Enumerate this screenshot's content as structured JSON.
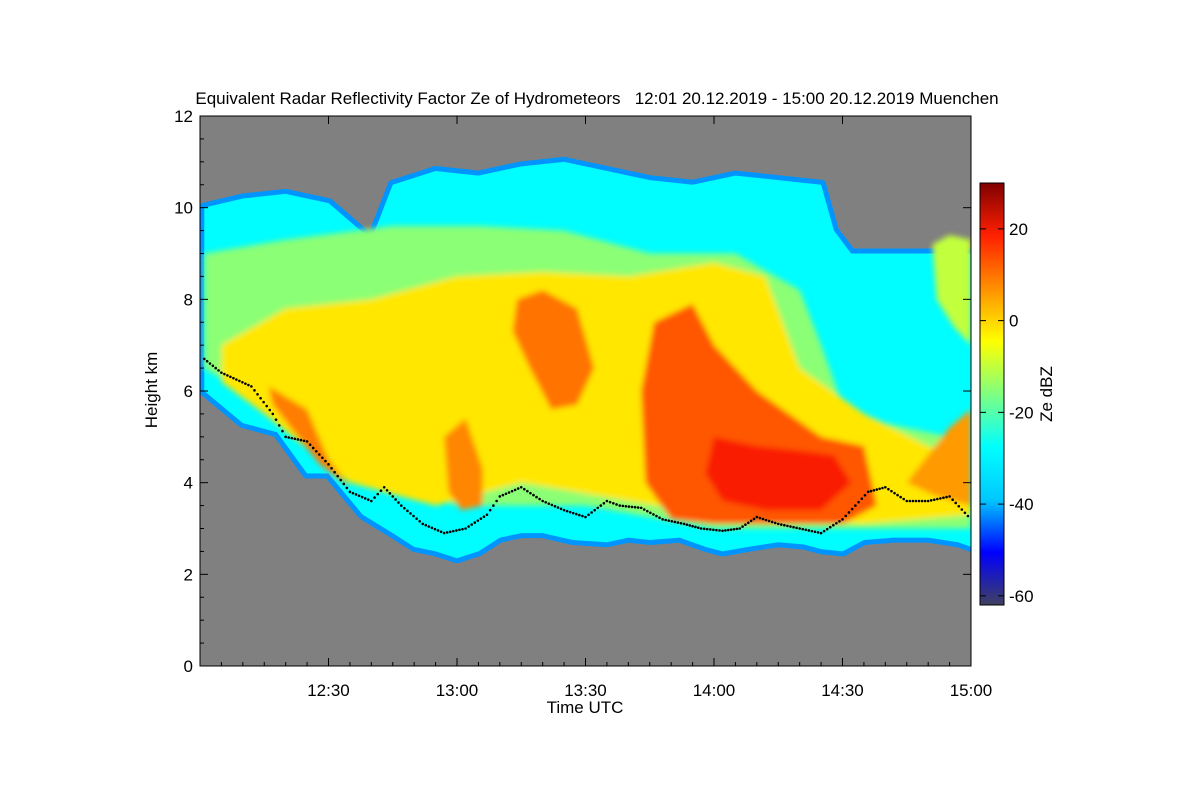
{
  "chart_data": {
    "type": "heatmap",
    "title": "Equivalent Radar Reflectivity Factor Ze of Hydrometeors   12:01 20.12.2019 - 15:00 20.12.2019 Muenchen",
    "xlabel": "Time UTC",
    "ylabel": "Height km",
    "xlim_minutes_after_1200": [
      1,
      180
    ],
    "ylim_km": [
      0,
      12
    ],
    "x_ticks": [
      {
        "label": "12:30",
        "minutes": 30
      },
      {
        "label": "13:00",
        "minutes": 60
      },
      {
        "label": "13:30",
        "minutes": 90
      },
      {
        "label": "14:00",
        "minutes": 120
      },
      {
        "label": "14:30",
        "minutes": 150
      },
      {
        "label": "15:00",
        "minutes": 180
      }
    ],
    "y_ticks": [
      {
        "label": "0",
        "value": 0
      },
      {
        "label": "2",
        "value": 2
      },
      {
        "label": "4",
        "value": 4
      },
      {
        "label": "6",
        "value": 6
      },
      {
        "label": "8",
        "value": 8
      },
      {
        "label": "10",
        "value": 10
      },
      {
        "label": "12",
        "value": 12
      }
    ],
    "colorbar": {
      "label": "Ze dBZ",
      "range": [
        -62,
        30
      ],
      "ticks": [
        {
          "label": "20",
          "value": 20
        },
        {
          "label": "0",
          "value": 0
        },
        {
          "label": "-20",
          "value": -20
        },
        {
          "label": "-40",
          "value": -40
        },
        {
          "label": "-60",
          "value": -60
        }
      ],
      "colors": [
        "#404060",
        "#0000ff",
        "#00c8ff",
        "#00ffff",
        "#80ff80",
        "#ffff00",
        "#ff9000",
        "#ff2000",
        "#800000"
      ]
    },
    "no_data_color": "#808080",
    "cloud_top_km": [
      [
        1,
        10.0
      ],
      [
        10,
        10.2
      ],
      [
        20,
        10.3
      ],
      [
        30,
        10.1
      ],
      [
        40,
        9.3
      ],
      [
        45,
        10.5
      ],
      [
        55,
        10.8
      ],
      [
        65,
        10.7
      ],
      [
        75,
        10.9
      ],
      [
        85,
        11.0
      ],
      [
        95,
        10.8
      ],
      [
        105,
        10.6
      ],
      [
        115,
        10.5
      ],
      [
        125,
        10.7
      ],
      [
        135,
        10.6
      ],
      [
        145,
        10.5
      ],
      [
        148,
        9.5
      ],
      [
        152,
        9.0
      ]
    ],
    "cloud_base_km": [
      [
        1,
        6.0
      ],
      [
        10,
        5.3
      ],
      [
        18,
        5.1
      ],
      [
        25,
        4.2
      ],
      [
        30,
        4.2
      ],
      [
        38,
        3.3
      ],
      [
        45,
        2.9
      ],
      [
        50,
        2.6
      ],
      [
        55,
        2.5
      ],
      [
        60,
        2.35
      ],
      [
        65,
        2.5
      ],
      [
        70,
        2.8
      ],
      [
        75,
        2.9
      ],
      [
        80,
        2.9
      ],
      [
        87,
        2.75
      ],
      [
        95,
        2.7
      ],
      [
        100,
        2.8
      ],
      [
        105,
        2.75
      ],
      [
        112,
        2.8
      ],
      [
        118,
        2.6
      ],
      [
        122,
        2.5
      ],
      [
        128,
        2.6
      ],
      [
        135,
        2.7
      ],
      [
        141,
        2.65
      ],
      [
        145,
        2.55
      ],
      [
        150,
        2.5
      ],
      [
        155,
        2.75
      ],
      [
        162,
        2.8
      ],
      [
        170,
        2.8
      ],
      [
        177,
        2.7
      ],
      [
        180,
        2.6
      ]
    ],
    "dotted_line_km": [
      [
        1,
        6.7
      ],
      [
        5,
        6.4
      ],
      [
        12,
        6.1
      ],
      [
        17,
        5.5
      ],
      [
        20,
        5.0
      ],
      [
        25,
        4.9
      ],
      [
        30,
        4.4
      ],
      [
        35,
        3.8
      ],
      [
        40,
        3.6
      ],
      [
        43,
        3.9
      ],
      [
        47,
        3.5
      ],
      [
        52,
        3.1
      ],
      [
        57,
        2.9
      ],
      [
        62,
        3.0
      ],
      [
        67,
        3.3
      ],
      [
        70,
        3.7
      ],
      [
        75,
        3.9
      ],
      [
        80,
        3.6
      ],
      [
        85,
        3.4
      ],
      [
        90,
        3.25
      ],
      [
        95,
        3.6
      ],
      [
        98,
        3.5
      ],
      [
        103,
        3.45
      ],
      [
        108,
        3.2
      ],
      [
        113,
        3.1
      ],
      [
        117,
        3.0
      ],
      [
        122,
        2.95
      ],
      [
        126,
        3.0
      ],
      [
        130,
        3.25
      ],
      [
        135,
        3.1
      ],
      [
        140,
        3.0
      ],
      [
        145,
        2.9
      ],
      [
        150,
        3.2
      ],
      [
        156,
        3.8
      ],
      [
        160,
        3.9
      ],
      [
        165,
        3.6
      ],
      [
        170,
        3.6
      ],
      [
        175,
        3.7
      ],
      [
        180,
        3.2
      ]
    ],
    "reflectivity_regions": [
      {
        "name": "upper-ice-cloud",
        "dbz": -15,
        "points": [
          [
            1,
            9.0
          ],
          [
            20,
            9.3
          ],
          [
            45,
            9.6
          ],
          [
            65,
            9.6
          ],
          [
            85,
            9.5
          ],
          [
            105,
            9.0
          ],
          [
            125,
            9.0
          ],
          [
            140,
            8.2
          ],
          [
            145,
            7.0
          ],
          [
            150,
            5.7
          ],
          [
            160,
            5.3
          ],
          [
            175,
            5.0
          ],
          [
            180,
            4.5
          ],
          [
            180,
            3.0
          ],
          [
            150,
            3.0
          ],
          [
            120,
            3.0
          ],
          [
            90,
            3.5
          ],
          [
            60,
            3.5
          ],
          [
            30,
            4.5
          ],
          [
            10,
            6.0
          ],
          [
            1,
            6.5
          ]
        ]
      },
      {
        "name": "mid-layer",
        "dbz": -2,
        "points": [
          [
            5,
            7.0
          ],
          [
            20,
            7.8
          ],
          [
            40,
            8.0
          ],
          [
            60,
            8.5
          ],
          [
            80,
            8.6
          ],
          [
            100,
            8.5
          ],
          [
            120,
            8.8
          ],
          [
            132,
            8.5
          ],
          [
            140,
            6.5
          ],
          [
            155,
            5.5
          ],
          [
            170,
            4.8
          ],
          [
            180,
            4.5
          ],
          [
            180,
            3.3
          ],
          [
            155,
            3.1
          ],
          [
            125,
            3.2
          ],
          [
            100,
            3.6
          ],
          [
            75,
            4.0
          ],
          [
            55,
            3.5
          ],
          [
            35,
            4.0
          ],
          [
            15,
            5.5
          ],
          [
            5,
            6.2
          ]
        ]
      },
      {
        "name": "core-west",
        "dbz": 9,
        "points": [
          [
            16,
            6.1
          ],
          [
            25,
            5.6
          ],
          [
            30,
            4.5
          ],
          [
            35,
            3.9
          ],
          [
            28,
            4.4
          ],
          [
            22,
            5.1
          ],
          [
            17,
            5.7
          ]
        ]
      },
      {
        "name": "core-1315",
        "dbz": 10,
        "points": [
          [
            74,
            8.0
          ],
          [
            80,
            8.2
          ],
          [
            88,
            7.8
          ],
          [
            92,
            6.5
          ],
          [
            88,
            5.7
          ],
          [
            82,
            5.6
          ],
          [
            77,
            6.5
          ],
          [
            73,
            7.3
          ]
        ]
      },
      {
        "name": "core-1330",
        "dbz": 8,
        "points": [
          [
            57,
            5.0
          ],
          [
            62,
            5.4
          ],
          [
            66,
            4.3
          ],
          [
            66,
            3.5
          ],
          [
            61,
            3.4
          ],
          [
            58,
            3.8
          ]
        ]
      },
      {
        "name": "core-1400",
        "dbz": 13,
        "points": [
          [
            106,
            7.5
          ],
          [
            115,
            7.9
          ],
          [
            120,
            7.0
          ],
          [
            130,
            6.0
          ],
          [
            145,
            5.0
          ],
          [
            155,
            4.8
          ],
          [
            158,
            3.5
          ],
          [
            150,
            3.1
          ],
          [
            135,
            3.1
          ],
          [
            120,
            3.1
          ],
          [
            110,
            3.2
          ],
          [
            104,
            4.0
          ],
          [
            103,
            6.0
          ]
        ]
      },
      {
        "name": "core-1420",
        "dbz": 19,
        "points": [
          [
            120,
            5.0
          ],
          [
            130,
            4.8
          ],
          [
            140,
            4.7
          ],
          [
            148,
            4.6
          ],
          [
            152,
            4.0
          ],
          [
            145,
            3.4
          ],
          [
            132,
            3.4
          ],
          [
            122,
            3.6
          ],
          [
            118,
            4.2
          ]
        ]
      },
      {
        "name": "east-echo",
        "dbz": 6,
        "points": [
          [
            165,
            4.0
          ],
          [
            175,
            5.2
          ],
          [
            180,
            5.6
          ],
          [
            180,
            3.5
          ],
          [
            172,
            3.7
          ]
        ]
      },
      {
        "name": "isolated-patch",
        "dbz": -10,
        "points": [
          [
            171,
            9.2
          ],
          [
            175,
            9.4
          ],
          [
            180,
            9.3
          ],
          [
            180,
            7.0
          ],
          [
            176,
            7.4
          ],
          [
            172,
            8.0
          ]
        ]
      }
    ]
  }
}
